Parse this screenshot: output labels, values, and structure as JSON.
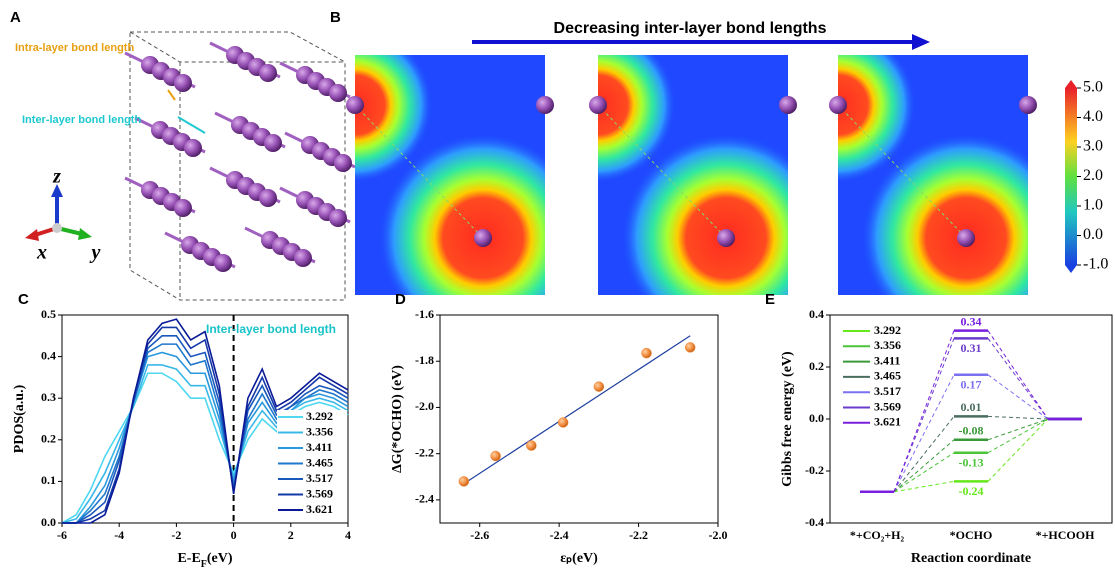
{
  "panels": {
    "A": {
      "label": "A",
      "annotations": [
        "Intra-layer bond length",
        "Inter-layer bond length"
      ],
      "axes": [
        "z",
        "x",
        "y"
      ]
    },
    "B": {
      "label": "B",
      "title": "Decreasing inter-layer bond lengths",
      "colorbar": {
        "lim": [
          -1,
          5
        ],
        "ticks": [
          {
            "value": 5,
            "label": "5.0"
          },
          {
            "value": 4,
            "label": "4.0"
          },
          {
            "value": 3,
            "label": "3.0"
          },
          {
            "value": 2,
            "label": "2.0"
          },
          {
            "value": 1,
            "label": "1.0"
          },
          {
            "value": 0,
            "label": "0.0"
          },
          {
            "value": -1,
            "label": "-1.0"
          }
        ]
      }
    },
    "C": {
      "label": "C"
    },
    "D": {
      "label": "D"
    },
    "E": {
      "label": "E"
    }
  },
  "chart_data": [
    {
      "type": "line",
      "ylabel": "PDOS(a.u.)",
      "xlabel": [
        "E-E",
        "F",
        "(eV)"
      ],
      "annotation": "Inter-layer bond length",
      "vline": 0,
      "xlim": [
        -6,
        4
      ],
      "xticks": [
        -6,
        -4,
        -2,
        0,
        2,
        4
      ],
      "ylim": [
        0,
        0.5
      ],
      "yticks": [
        {
          "value": 0,
          "label": "0.0"
        },
        0.1,
        0.2,
        0.3,
        0.4,
        0.5
      ],
      "x": [
        -6,
        -5.5,
        -5,
        -4.5,
        -4,
        -3.5,
        -3,
        -2.5,
        -2,
        -1.5,
        -1,
        -0.5,
        0,
        0.5,
        1,
        1.5,
        2,
        2.5,
        3,
        3.5,
        4
      ],
      "series": [
        {
          "name": "3.292",
          "color": "#4fd8f0",
          "values": [
            0,
            0.02,
            0.08,
            0.16,
            0.22,
            0.28,
            0.36,
            0.36,
            0.34,
            0.3,
            0.3,
            0.2,
            0.12,
            0.2,
            0.25,
            0.22,
            0.26,
            0.28,
            0.29,
            0.28,
            0.26
          ]
        },
        {
          "name": "3.356",
          "color": "#3ab8e8",
          "values": [
            0,
            0.01,
            0.06,
            0.12,
            0.2,
            0.28,
            0.38,
            0.38,
            0.37,
            0.33,
            0.33,
            0.23,
            0.11,
            0.22,
            0.27,
            0.23,
            0.27,
            0.29,
            0.3,
            0.29,
            0.27
          ]
        },
        {
          "name": "3.411",
          "color": "#2a98dc",
          "values": [
            0,
            0,
            0.04,
            0.09,
            0.18,
            0.29,
            0.4,
            0.41,
            0.4,
            0.36,
            0.36,
            0.25,
            0.1,
            0.24,
            0.29,
            0.24,
            0.27,
            0.3,
            0.31,
            0.3,
            0.28
          ]
        },
        {
          "name": "3.465",
          "color": "#1f78cc",
          "values": [
            0,
            0,
            0.03,
            0.07,
            0.16,
            0.29,
            0.41,
            0.43,
            0.43,
            0.38,
            0.39,
            0.27,
            0.09,
            0.25,
            0.31,
            0.25,
            0.28,
            0.3,
            0.32,
            0.31,
            0.29
          ]
        },
        {
          "name": "3.517",
          "color": "#1a58bc",
          "values": [
            0,
            0,
            0.02,
            0.05,
            0.15,
            0.29,
            0.42,
            0.45,
            0.45,
            0.4,
            0.41,
            0.29,
            0.08,
            0.27,
            0.33,
            0.26,
            0.28,
            0.31,
            0.33,
            0.32,
            0.3
          ]
        },
        {
          "name": "3.569",
          "color": "#1538a8",
          "values": [
            0,
            0,
            0.01,
            0.03,
            0.13,
            0.3,
            0.43,
            0.47,
            0.47,
            0.42,
            0.44,
            0.31,
            0.075,
            0.28,
            0.35,
            0.27,
            0.29,
            0.32,
            0.35,
            0.33,
            0.31
          ]
        },
        {
          "name": "3.621",
          "color": "#0a1a96",
          "values": [
            0,
            0,
            0,
            0.02,
            0.12,
            0.3,
            0.44,
            0.48,
            0.49,
            0.44,
            0.46,
            0.33,
            0.07,
            0.3,
            0.37,
            0.28,
            0.3,
            0.33,
            0.36,
            0.34,
            0.32
          ]
        }
      ]
    },
    {
      "type": "scatter",
      "ylabel": "ΔG(*OCHO) (eV)",
      "xlabel": "εₚ(eV)",
      "color": "#f08a3c",
      "fit_color": "#1f3fa0",
      "xlim": [
        -2.7,
        -2.0
      ],
      "xticks": [
        -2.6,
        -2.4,
        -2.2,
        {
          "value": -2,
          "label": "-2.0"
        }
      ],
      "ylim": [
        -2.5,
        -1.6
      ],
      "yticks": [
        -2.4,
        -2.2,
        {
          "value": -2,
          "label": "-2.0"
        },
        -1.8,
        -1.6
      ],
      "x": [
        -2.64,
        -2.56,
        -2.47,
        -2.39,
        -2.3,
        -2.18,
        -2.07
      ],
      "values": [
        -2.32,
        -2.21,
        -2.165,
        -2.065,
        -1.91,
        -1.765,
        -1.74
      ],
      "fit": {
        "x": [
          -2.64,
          -2.07
        ],
        "y": [
          -2.33,
          -1.69
        ]
      }
    },
    {
      "type": "energy",
      "ylabel": "Gibbs free energy (eV)",
      "xlabel": "Reaction coordinate",
      "categories": [
        "*+CO₂+H₂",
        "*OCHO",
        "*+HCOOH"
      ],
      "ylim": [
        -0.4,
        0.4
      ],
      "yticks": [
        -0.4,
        -0.2,
        {
          "value": 0,
          "label": "0.0"
        },
        0.2,
        0.4
      ],
      "series": [
        {
          "name": "3.292",
          "color": "#66e81a",
          "values": [
            -0.28,
            -0.24,
            0
          ]
        },
        {
          "name": "3.356",
          "color": "#4cc43a",
          "values": [
            -0.28,
            -0.13,
            0
          ]
        },
        {
          "name": "3.411",
          "color": "#3a9a3a",
          "values": [
            -0.28,
            -0.08,
            0
          ]
        },
        {
          "name": "3.465",
          "color": "#4a6e5e",
          "values": [
            -0.28,
            0.01,
            0
          ]
        },
        {
          "name": "3.517",
          "color": "#7a70f0",
          "values": [
            -0.28,
            0.17,
            0
          ]
        },
        {
          "name": "3.569",
          "color": "#6a3ccc",
          "values": [
            -0.28,
            0.31,
            0
          ]
        },
        {
          "name": "3.621",
          "color": "#7a1fe0",
          "values": [
            -0.28,
            0.34,
            0
          ]
        }
      ]
    }
  ]
}
